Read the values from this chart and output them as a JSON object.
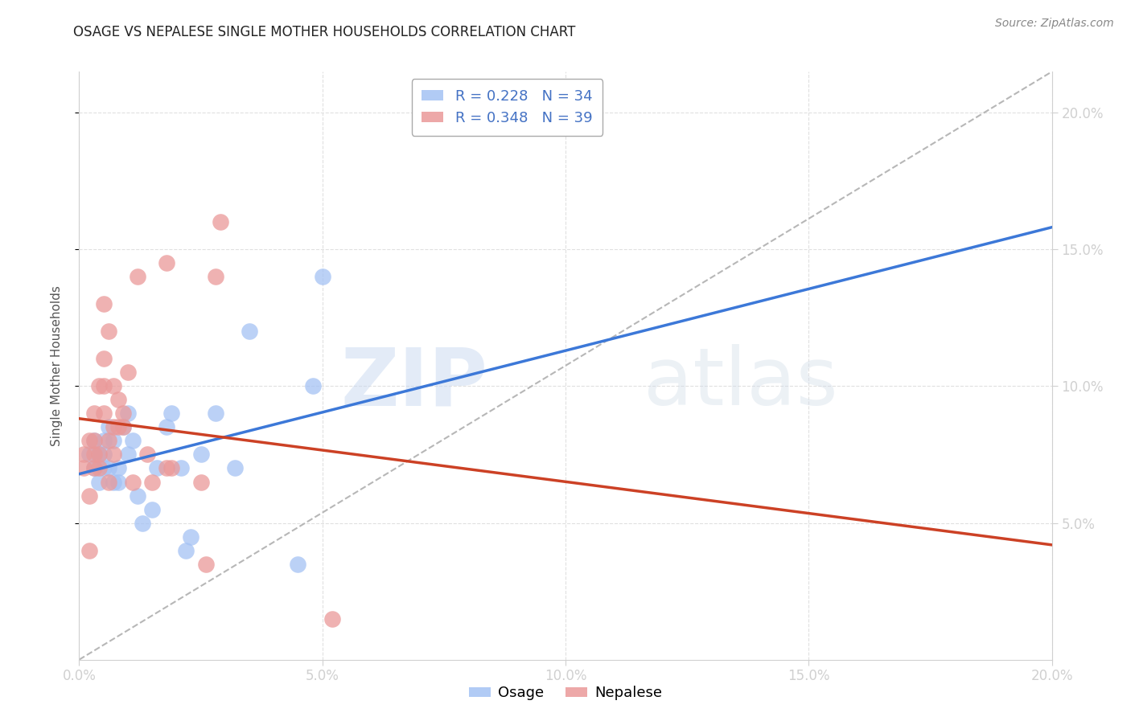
{
  "title": "OSAGE VS NEPALESE SINGLE MOTHER HOUSEHOLDS CORRELATION CHART",
  "source": "Source: ZipAtlas.com",
  "ylabel": "Single Mother Households",
  "xlim": [
    0.0,
    0.2
  ],
  "ylim": [
    0.0,
    0.215
  ],
  "yticks": [
    0.05,
    0.1,
    0.15,
    0.2
  ],
  "xticks": [
    0.0,
    0.05,
    0.1,
    0.15,
    0.2
  ],
  "background_color": "#ffffff",
  "watermark_text": "ZIP",
  "watermark_text2": "atlas",
  "osage_R": 0.228,
  "osage_N": 34,
  "nepalese_R": 0.348,
  "nepalese_N": 39,
  "osage_color": "#a4c2f4",
  "nepalese_color": "#ea9999",
  "osage_line_color": "#3c78d8",
  "nepalese_line_color": "#cc4125",
  "diag_line_color": "#b7b7b7",
  "osage_points_x": [
    0.002,
    0.003,
    0.003,
    0.004,
    0.004,
    0.005,
    0.005,
    0.005,
    0.006,
    0.006,
    0.007,
    0.007,
    0.008,
    0.008,
    0.009,
    0.01,
    0.01,
    0.011,
    0.012,
    0.013,
    0.015,
    0.016,
    0.018,
    0.019,
    0.021,
    0.022,
    0.023,
    0.025,
    0.028,
    0.032,
    0.035,
    0.045,
    0.048,
    0.05
  ],
  "osage_points_y": [
    0.075,
    0.07,
    0.08,
    0.075,
    0.065,
    0.07,
    0.075,
    0.08,
    0.07,
    0.085,
    0.065,
    0.08,
    0.065,
    0.07,
    0.085,
    0.09,
    0.075,
    0.08,
    0.06,
    0.05,
    0.055,
    0.07,
    0.085,
    0.09,
    0.07,
    0.04,
    0.045,
    0.075,
    0.09,
    0.07,
    0.12,
    0.035,
    0.1,
    0.14
  ],
  "nepalese_points_x": [
    0.001,
    0.001,
    0.002,
    0.002,
    0.002,
    0.003,
    0.003,
    0.003,
    0.003,
    0.004,
    0.004,
    0.004,
    0.005,
    0.005,
    0.005,
    0.005,
    0.006,
    0.006,
    0.006,
    0.007,
    0.007,
    0.007,
    0.008,
    0.008,
    0.009,
    0.009,
    0.01,
    0.011,
    0.012,
    0.014,
    0.015,
    0.018,
    0.018,
    0.019,
    0.025,
    0.026,
    0.028,
    0.029,
    0.052
  ],
  "nepalese_points_y": [
    0.07,
    0.075,
    0.08,
    0.04,
    0.06,
    0.07,
    0.075,
    0.08,
    0.09,
    0.1,
    0.07,
    0.075,
    0.09,
    0.1,
    0.11,
    0.13,
    0.065,
    0.08,
    0.12,
    0.075,
    0.085,
    0.1,
    0.085,
    0.095,
    0.085,
    0.09,
    0.105,
    0.065,
    0.14,
    0.075,
    0.065,
    0.07,
    0.145,
    0.07,
    0.065,
    0.035,
    0.14,
    0.16,
    0.015
  ]
}
